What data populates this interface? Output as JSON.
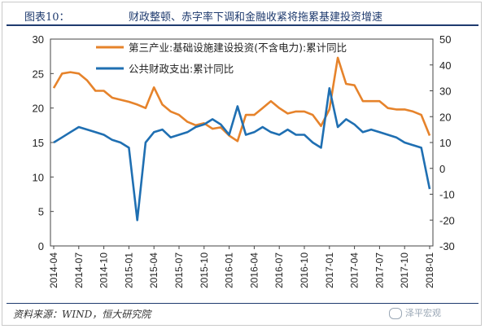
{
  "figure": {
    "prefix": "图表10：",
    "title": "财政整顿、赤字率下调和金融收紧将拖累基建投资增速",
    "source": "资料来源：WIND，恒大研究院",
    "watermark": "泽平宏观"
  },
  "colors": {
    "title": "#1f3b6f",
    "series_orange": "#e6832b",
    "series_blue": "#1f6fb2"
  },
  "chart_data": {
    "type": "line",
    "x": [
      "2014-04",
      "2014-05",
      "2014-06",
      "2014-07",
      "2014-08",
      "2014-09",
      "2014-10",
      "2014-11",
      "2014-12",
      "2015-01",
      "2015-02",
      "2015-03",
      "2015-04",
      "2015-05",
      "2015-06",
      "2015-07",
      "2015-08",
      "2015-09",
      "2015-10",
      "2015-11",
      "2015-12",
      "2016-01",
      "2016-02",
      "2016-03",
      "2016-04",
      "2016-05",
      "2016-06",
      "2016-07",
      "2016-08",
      "2016-09",
      "2016-10",
      "2016-11",
      "2016-12",
      "2017-01",
      "2017-02",
      "2017-03",
      "2017-04",
      "2017-05",
      "2017-06",
      "2017-07",
      "2017-08",
      "2017-09",
      "2017-10",
      "2017-11",
      "2017-12",
      "2018-01"
    ],
    "xtick_labels": [
      "2014-04",
      "2014-07",
      "2014-10",
      "2015-01",
      "2015-04",
      "2015-07",
      "2015-10",
      "2016-01",
      "2016-04",
      "2016-07",
      "2016-10",
      "2017-01",
      "2017-04",
      "2017-07",
      "2017-10",
      "2018-01"
    ],
    "left_axis": {
      "ylim": [
        0,
        30
      ],
      "ticks": [
        0,
        5,
        10,
        15,
        20,
        25,
        30
      ]
    },
    "right_axis": {
      "ylim": [
        -30,
        50
      ],
      "ticks": [
        -30,
        -20,
        -10,
        0,
        10,
        20,
        30,
        40,
        50
      ]
    },
    "series": [
      {
        "name": "第三产业:基础设施建设投资(不含电力):累计同比",
        "axis": "left",
        "color": "#e6832b",
        "values": [
          22.9,
          25.0,
          25.2,
          25.0,
          24.0,
          22.5,
          22.5,
          21.5,
          21.2,
          20.9,
          20.5,
          20.0,
          23.0,
          20.5,
          19.5,
          19.0,
          18.0,
          17.5,
          17.8,
          17.0,
          17.2,
          16.0,
          15.2,
          19.0,
          19.0,
          20.0,
          21.0,
          20.0,
          19.2,
          19.5,
          19.5,
          19.0,
          17.4,
          19.8,
          27.3,
          23.5,
          23.3,
          21.0,
          21.0,
          21.0,
          20.0,
          19.8,
          19.8,
          19.5,
          19.0,
          16.0
        ]
      },
      {
        "name": "公共财政支出:累计同比",
        "axis": "right",
        "color": "#1f6fb2",
        "values": [
          10.0,
          12.0,
          14.0,
          16.0,
          15.0,
          14.0,
          13.0,
          11.0,
          10.0,
          8.0,
          -20.0,
          10.0,
          14.0,
          15.0,
          12.0,
          13.0,
          14.0,
          16.0,
          17.0,
          19.0,
          17.0,
          13.0,
          24.0,
          13.0,
          14.0,
          16.0,
          14.0,
          13.0,
          15.0,
          13.0,
          13.0,
          10.0,
          8.0,
          31.0,
          16.0,
          19.0,
          17.0,
          14.0,
          15.0,
          14.0,
          13.0,
          12.0,
          10.0,
          9.0,
          8.0,
          -8.0
        ]
      }
    ],
    "legend_placement": "top-center",
    "grid": false
  }
}
